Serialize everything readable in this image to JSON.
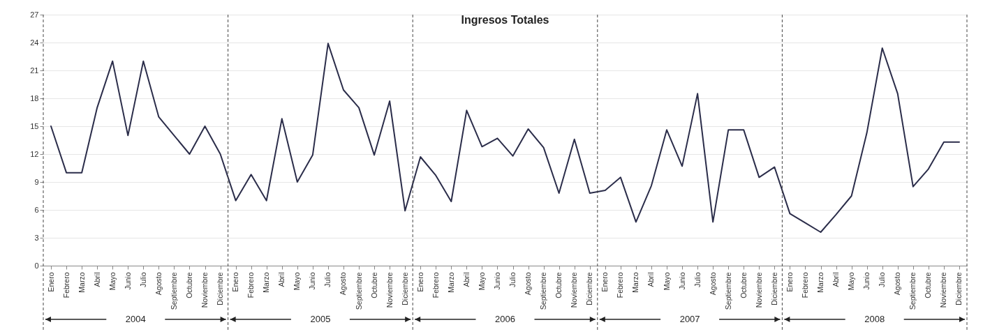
{
  "chart_data": {
    "type": "line",
    "title": "Ingresos Totales",
    "categories": [
      "Enero",
      "Febrero",
      "Marzo",
      "Abril",
      "Mayo",
      "Junio",
      "Julio",
      "Agosto",
      "Septiembre",
      "Octubre",
      "Noviembre",
      "Diciembre",
      "Enero",
      "Febrero",
      "Marzo",
      "Abril",
      "Mayo",
      "Junio",
      "Julio",
      "Agosto",
      "Septiembre",
      "Octubre",
      "Noviembre",
      "Diciembre",
      "Enero",
      "Febrero",
      "Marzo",
      "Abril",
      "Mayo",
      "Junio",
      "Julio",
      "Agosto",
      "Septiembre",
      "Octubre",
      "Noviembre",
      "Diciembre",
      "Enero",
      "Febrero",
      "Marzo",
      "Abril",
      "Mayo",
      "Junio",
      "Julio",
      "Agosto",
      "Septiembre",
      "Octubre",
      "Noviembre",
      "Diciembre",
      "Enero",
      "Febrero",
      "Marzo",
      "Abril",
      "Mayo",
      "Junio",
      "Julio",
      "Agosto",
      "Septiembre",
      "Octubre",
      "Noviembre",
      "Diciembre"
    ],
    "series": [
      {
        "color": "#2b2d4a",
        "values": [
          15,
          10,
          10,
          17,
          22,
          14,
          22,
          16,
          14,
          12,
          15,
          12,
          7,
          9.8,
          7,
          15.8,
          9,
          11.9,
          23.9,
          18.9,
          17,
          11.9,
          17.7,
          5.9,
          11.7,
          9.7,
          6.9,
          16.7,
          12.8,
          13.7,
          11.8,
          14.7,
          12.7,
          7.8,
          13.6,
          7.8,
          8.1,
          9.5,
          4.7,
          8.6,
          14.6,
          10.7,
          18.5,
          4.7,
          14.6,
          14.6,
          9.5,
          10.6,
          5.6,
          4.6,
          3.6,
          5.5,
          7.5,
          14.3,
          23.4,
          18.5,
          8.5,
          10.4,
          13.3,
          13.3
        ]
      }
    ],
    "annotations": [
      "2004",
      "2005",
      "2006",
      "2007",
      "2008"
    ],
    "ylim": [
      0,
      27
    ],
    "yticks": [
      0,
      3,
      6,
      9,
      12,
      15,
      18,
      21,
      24,
      27
    ],
    "grid": "y",
    "marker": "none",
    "line_style": "solid"
  }
}
